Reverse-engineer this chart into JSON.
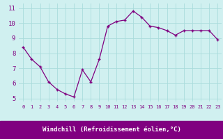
{
  "x": [
    0,
    1,
    2,
    3,
    4,
    5,
    6,
    7,
    8,
    9,
    10,
    11,
    12,
    13,
    14,
    15,
    16,
    17,
    18,
    19,
    20,
    21,
    22,
    23
  ],
  "y": [
    8.4,
    7.6,
    7.1,
    6.1,
    5.6,
    5.3,
    5.1,
    6.9,
    6.1,
    7.6,
    9.8,
    10.1,
    10.2,
    10.8,
    10.4,
    9.8,
    9.7,
    9.5,
    9.2,
    9.5,
    9.5,
    9.5,
    9.5,
    8.9
  ],
  "line_color": "#800080",
  "marker": "+",
  "bg_color": "#d0f0f0",
  "grid_color": "#aadcdc",
  "xlabel": "Windchill (Refroidissement éolien,°C)",
  "yticks": [
    5,
    6,
    7,
    8,
    9,
    10,
    11
  ],
  "xticks": [
    0,
    1,
    2,
    3,
    4,
    5,
    6,
    7,
    8,
    9,
    10,
    11,
    12,
    13,
    14,
    15,
    16,
    17,
    18,
    19,
    20,
    21,
    22,
    23
  ],
  "ylim": [
    4.8,
    11.3
  ],
  "xlim": [
    -0.5,
    23.5
  ],
  "xlabel_bg": "#800080",
  "xlabel_fg": "#ffffff",
  "xticklabel_fontsize": 5,
  "yticklabel_fontsize": 6.5,
  "xlabel_fontsize": 6.5
}
